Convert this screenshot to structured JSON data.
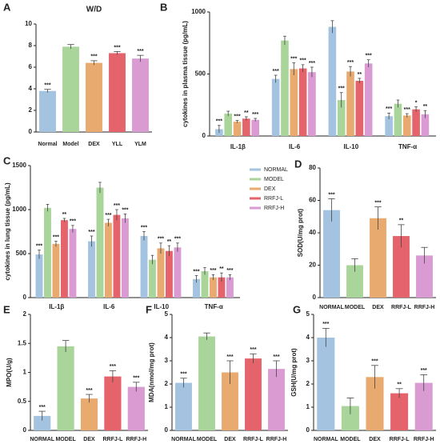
{
  "chart_data": [
    {
      "type": "bar",
      "label": "A",
      "title": "W/D",
      "categories": [
        "Normal",
        "Model",
        "DEX",
        "YLL",
        "YLM"
      ],
      "values": [
        3.8,
        7.9,
        6.4,
        7.3,
        6.8
      ],
      "errors": [
        0.15,
        0.2,
        0.2,
        0.15,
        0.3
      ],
      "stars": [
        "***",
        null,
        "***",
        "***",
        "***"
      ],
      "colors": [
        "#a3c3e0",
        "#a9d59b",
        "#e8aa6e",
        "#e5636b",
        "#d99bd2"
      ],
      "ylim": [
        0,
        10
      ],
      "yticks": [
        0,
        2,
        4,
        6,
        8,
        10
      ]
    },
    {
      "type": "grouped_bar",
      "label": "B",
      "ylabel": "cytokines in plasma tissue (pg/mL)",
      "categories": [
        "IL-1β",
        "IL-6",
        "IL-10",
        "TNF-α"
      ],
      "series": [
        {
          "color": "#a3c3e0",
          "values": [
            55,
            460,
            880,
            160
          ],
          "errors": [
            30,
            30,
            50,
            25
          ],
          "stars": [
            "***",
            "***",
            null,
            "***"
          ]
        },
        {
          "color": "#a9d59b",
          "values": [
            180,
            770,
            290,
            260
          ],
          "errors": [
            20,
            35,
            60,
            30
          ],
          "stars": [
            null,
            null,
            "***",
            null
          ]
        },
        {
          "color": "#e8aa6e",
          "values": [
            115,
            540,
            520,
            165
          ],
          "errors": [
            10,
            50,
            40,
            15
          ],
          "stars": [
            "***",
            "***",
            "***",
            "***"
          ]
        },
        {
          "color": "#e5636b",
          "values": [
            140,
            545,
            445,
            215
          ],
          "errors": [
            15,
            30,
            20,
            20
          ],
          "stars": [
            "**",
            "***",
            "**",
            "*"
          ]
        },
        {
          "color": "#d99bd2",
          "values": [
            130,
            515,
            585,
            175
          ],
          "errors": [
            12,
            40,
            30,
            30
          ],
          "stars": [
            "***",
            "***",
            "***",
            "**"
          ]
        }
      ],
      "ylim": [
        0,
        1000
      ],
      "yticks": [
        0,
        500,
        1000
      ]
    },
    {
      "type": "grouped_bar",
      "label": "C",
      "ylabel": "cytokines in lung tissue (pg/mL)",
      "categories": [
        "IL-1β",
        "IL-6",
        "IL-10",
        "TNF-α"
      ],
      "series": [
        {
          "name": "NORMAL",
          "color": "#a3c3e0",
          "values": [
            490,
            640,
            700,
            210
          ],
          "errors": [
            50,
            60,
            50,
            40
          ],
          "stars": [
            "***",
            "***",
            "***",
            "***"
          ]
        },
        {
          "name": "MODEL",
          "color": "#a9d59b",
          "values": [
            1020,
            1250,
            430,
            300
          ],
          "errors": [
            40,
            60,
            50,
            40
          ],
          "stars": [
            null,
            null,
            null,
            null
          ]
        },
        {
          "name": "DEX",
          "color": "#e8aa6e",
          "values": [
            610,
            850,
            560,
            230
          ],
          "errors": [
            30,
            40,
            60,
            30
          ],
          "stars": [
            "***",
            "***",
            "***",
            "***"
          ]
        },
        {
          "name": "RRFJ-L",
          "color": "#e5636b",
          "values": [
            880,
            940,
            530,
            230
          ],
          "errors": [
            20,
            60,
            60,
            50
          ],
          "stars": [
            "**",
            "***",
            "**",
            "**"
          ]
        },
        {
          "name": "RRFJ-H",
          "color": "#d99bd2",
          "values": [
            780,
            900,
            570,
            230
          ],
          "errors": [
            40,
            50,
            50,
            30
          ],
          "stars": [
            "***",
            "***",
            "***",
            "***"
          ]
        }
      ],
      "ylim": [
        0,
        1500
      ],
      "yticks": [
        0,
        500,
        1000,
        1500
      ],
      "legend": "right"
    },
    {
      "type": "bar",
      "label": "D",
      "ylabel": "SOD(U/mg prot)",
      "categories": [
        "NORMAL",
        "MODEL",
        "DEX",
        "RRFJ-L",
        "RRFJ-H"
      ],
      "values": [
        54,
        20,
        49,
        38,
        26
      ],
      "errors": [
        7,
        4,
        7,
        7,
        5
      ],
      "stars": [
        "***",
        null,
        "***",
        "**",
        null
      ],
      "colors": [
        "#a3c3e0",
        "#a9d59b",
        "#e8aa6e",
        "#e5636b",
        "#d99bd2"
      ],
      "ylim": [
        0,
        80
      ],
      "yticks": [
        0,
        20,
        40,
        60,
        80
      ]
    },
    {
      "type": "bar",
      "label": "E",
      "ylabel": "MPO(U/g)",
      "categories": [
        "NORMAL",
        "MODEL",
        "DEX",
        "RRFJ-L",
        "RRFJ-H"
      ],
      "values": [
        0.25,
        1.45,
        0.55,
        0.93,
        0.75
      ],
      "errors": [
        0.08,
        0.1,
        0.07,
        0.1,
        0.08
      ],
      "stars": [
        "***",
        null,
        "***",
        "***",
        "***"
      ],
      "colors": [
        "#a3c3e0",
        "#a9d59b",
        "#e8aa6e",
        "#e5636b",
        "#d99bd2"
      ],
      "ylim": [
        0,
        2
      ],
      "yticks": [
        0,
        0.5,
        1,
        1.5,
        2
      ]
    },
    {
      "type": "bar",
      "label": "F",
      "ylabel": "MDA(nmol/mg prot)",
      "categories": [
        "NORMAL",
        "MODEL",
        "DEX",
        "RRFJ-L",
        "RRFJ-H"
      ],
      "values": [
        2.05,
        4.05,
        2.5,
        3.1,
        2.65
      ],
      "errors": [
        0.2,
        0.15,
        0.5,
        0.2,
        0.35
      ],
      "stars": [
        "***",
        null,
        "***",
        "***",
        "***"
      ],
      "colors": [
        "#a3c3e0",
        "#a9d59b",
        "#e8aa6e",
        "#e5636b",
        "#d99bd2"
      ],
      "ylim": [
        0,
        5
      ],
      "yticks": [
        0,
        1,
        2,
        3,
        4,
        5
      ]
    },
    {
      "type": "bar",
      "label": "G",
      "ylabel": "GSH(U/mg prot)",
      "categories": [
        "NORMAL",
        "MODEL",
        "DEX",
        "RRFJ-L",
        "RRFJ-H"
      ],
      "values": [
        4.0,
        1.05,
        2.3,
        1.6,
        2.05
      ],
      "errors": [
        0.4,
        0.35,
        0.5,
        0.2,
        0.35
      ],
      "stars": [
        "***",
        null,
        "***",
        "**",
        "***"
      ],
      "colors": [
        "#a3c3e0",
        "#a9d59b",
        "#e8aa6e",
        "#e5636b",
        "#d99bd2"
      ],
      "ylim": [
        0,
        5
      ],
      "yticks": [
        0,
        1,
        2,
        3,
        4,
        5
      ]
    }
  ]
}
